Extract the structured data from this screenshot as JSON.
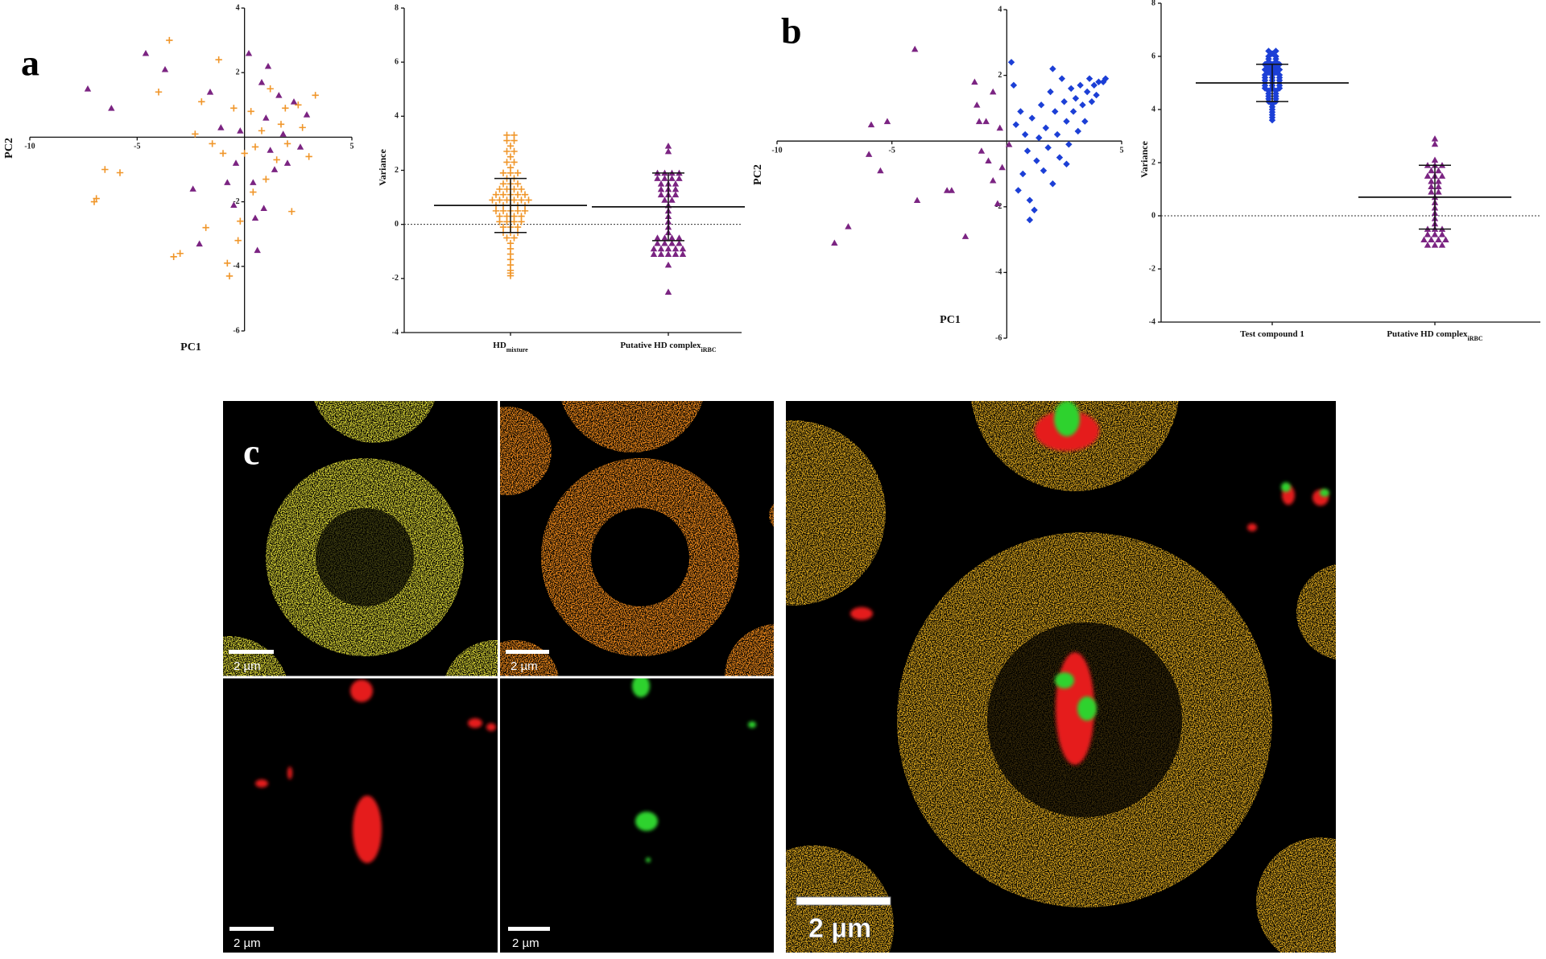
{
  "panel_labels": [
    "a",
    "b",
    "c"
  ],
  "images": {
    "scale_bar_labels": [
      "2 µm",
      "2 µm",
      "2 µm",
      "2 µm",
      "2 µm"
    ]
  },
  "chart_data": [
    {
      "type": "scatter",
      "x_label": "PC1",
      "y_label": "PC2",
      "xlim": [
        -10,
        5
      ],
      "ylim": [
        -6,
        4
      ],
      "xticks": [
        -10,
        -5,
        5
      ],
      "yticks": [
        -6,
        -4,
        -2,
        2,
        4
      ],
      "series": [
        {
          "color": "#f0962a",
          "marker": "plus",
          "x": [
            -7,
            -6.9,
            -6.5,
            -5.8,
            -3.5,
            -4,
            -3.3,
            -3,
            -2.3,
            -2,
            -1.5,
            -1.2,
            -1,
            -0.8,
            -0.7,
            -0.5,
            -0.3,
            -0.2,
            0,
            0.3,
            0.5,
            0.8,
            1,
            1.2,
            1.5,
            1.7,
            2,
            2.2,
            2.5,
            2.7,
            3,
            3.3,
            -1.8,
            0.4,
            1.9
          ],
          "values": [
            -2,
            -1.9,
            -1,
            -1.1,
            3,
            1.4,
            -3.7,
            -3.6,
            0.1,
            1.1,
            -0.2,
            2.4,
            -0.5,
            -3.9,
            -4.3,
            0.9,
            -3.2,
            -2.6,
            -0.5,
            0.8,
            -0.3,
            0.2,
            -1.3,
            1.5,
            -0.7,
            0.4,
            -0.2,
            -2.3,
            1,
            0.3,
            -0.6,
            1.3,
            -2.8,
            -1.7,
            0.9
          ]
        },
        {
          "color": "#7b2482",
          "marker": "triangle",
          "x": [
            -7.3,
            -6.2,
            -4.6,
            -3.7,
            -2.1,
            -2.4,
            -1.6,
            -1.1,
            -0.8,
            -0.4,
            -0.2,
            0.2,
            0.4,
            0.5,
            0.6,
            0.8,
            1,
            1.2,
            1.4,
            1.6,
            1.8,
            2,
            2.3,
            2.6,
            2.9,
            -0.5,
            1.1,
            0.9
          ],
          "values": [
            1.5,
            0.9,
            2.6,
            2.1,
            -3.3,
            -1.6,
            1.4,
            0.3,
            -1.4,
            -0.8,
            0.2,
            2.6,
            -1.4,
            -2.5,
            -3.5,
            1.7,
            0.6,
            -0.4,
            -1,
            1.3,
            0.1,
            -0.8,
            1.1,
            -0.3,
            0.7,
            -2.1,
            2.2,
            -2.2
          ]
        }
      ]
    },
    {
      "type": "dot",
      "y_label": "Variance",
      "ylim": [
        -4,
        8
      ],
      "yticks": [
        -4,
        -2,
        0,
        2,
        4,
        6,
        8
      ],
      "zero_line": true,
      "categories": [
        "HD",
        "Putative HD complex"
      ],
      "category_subscripts": [
        "mixture",
        "iRBC"
      ],
      "colors": [
        "#f0962a",
        "#7b2482"
      ],
      "markers": [
        "plus",
        "triangle"
      ],
      "mean": [
        0.7,
        0.65
      ],
      "sd": [
        1.0,
        1.25
      ],
      "values": [
        [
          3.3,
          3.3,
          3.1,
          3.1,
          2.9,
          2.7,
          2.7,
          2.5,
          2.3,
          2.3,
          2.1,
          1.9,
          1.9,
          1.9,
          1.7,
          1.7,
          1.5,
          1.5,
          1.5,
          1.3,
          1.3,
          1.3,
          1.3,
          1.1,
          1.1,
          1.1,
          1.1,
          1.1,
          0.9,
          0.9,
          0.9,
          0.9,
          0.9,
          0.9,
          0.7,
          0.7,
          0.7,
          0.7,
          0.7,
          0.5,
          0.5,
          0.5,
          0.5,
          0.5,
          0.3,
          0.3,
          0.3,
          0.3,
          0.1,
          0.1,
          0.1,
          0.1,
          -0.1,
          -0.1,
          -0.1,
          -0.3,
          -0.3,
          -0.3,
          -0.5,
          -0.5,
          -0.7,
          -0.9,
          -1.1,
          -1.3,
          -1.5,
          -1.7,
          -1.9,
          -1.8
        ],
        [
          2.9,
          2.7,
          1.9,
          1.9,
          1.9,
          1.9,
          1.7,
          1.7,
          1.7,
          1.7,
          1.5,
          1.5,
          1.5,
          1.3,
          1.3,
          1.3,
          1.1,
          1.1,
          1.1,
          0.9,
          0.9,
          0.7,
          0.5,
          0.3,
          0.1,
          -0.1,
          -0.3,
          -0.5,
          -0.5,
          -0.5,
          -0.5,
          -0.7,
          -0.7,
          -0.7,
          -0.7,
          -0.9,
          -0.9,
          -0.9,
          -0.9,
          -0.9,
          -1.1,
          -1.1,
          -1.1,
          -1.1,
          -1.1,
          -1.5,
          -2.5
        ]
      ]
    },
    {
      "type": "scatter",
      "x_label": "PC1",
      "y_label": "PC2",
      "xlim": [
        -10,
        5
      ],
      "ylim": [
        -6,
        4
      ],
      "xticks": [
        -10,
        -5,
        5
      ],
      "yticks": [
        -6,
        -4,
        -2,
        2,
        4
      ],
      "series": [
        {
          "color": "#7b2482",
          "marker": "triangle",
          "x": [
            -4,
            -5.9,
            -5.2,
            -6,
            -5.5,
            -6.9,
            -7.5,
            -3.9,
            -2.6,
            -2.4,
            -1.8,
            -1.4,
            -1.3,
            -1.2,
            -1.1,
            -0.9,
            -0.8,
            -0.6,
            -0.4,
            -0.2,
            0.1,
            -0.6,
            -0.3
          ],
          "values": [
            2.8,
            0.5,
            0.6,
            -0.4,
            -0.9,
            -2.6,
            -3.1,
            -1.8,
            -1.5,
            -1.5,
            -2.9,
            1.8,
            1.1,
            0.6,
            -0.3,
            0.6,
            -0.6,
            -1.2,
            -1.9,
            -0.8,
            -0.1,
            1.5,
            0.4
          ]
        },
        {
          "color": "#1c3fd6",
          "marker": "diamond",
          "x": [
            0.2,
            0.3,
            0.4,
            0.5,
            0.7,
            0.8,
            0.9,
            1,
            1.2,
            1.1,
            1.3,
            1.4,
            1.5,
            1.6,
            1.7,
            1.8,
            1.9,
            2,
            2.1,
            2.2,
            2.3,
            2.4,
            2.5,
            2.6,
            2.7,
            2.8,
            2.9,
            3,
            3.1,
            3.2,
            3.3,
            3.4,
            3.5,
            3.6,
            3.7,
            3.8,
            3.9,
            4,
            4.2,
            4.3,
            0.6,
            1.0,
            2.0,
            2.6
          ],
          "values": [
            2.4,
            1.7,
            0.5,
            -1.5,
            -1,
            0.2,
            -0.3,
            -2.4,
            -2.1,
            0.7,
            -0.6,
            0.1,
            1.1,
            -0.9,
            0.4,
            -0.2,
            1.5,
            -1.3,
            0.9,
            0.2,
            -0.5,
            1.9,
            1.2,
            0.6,
            -0.1,
            1.6,
            0.9,
            1.3,
            0.3,
            1.7,
            1.1,
            0.6,
            1.5,
            1.9,
            1.2,
            1.7,
            1.4,
            1.8,
            1.8,
            1.9,
            0.9,
            -1.8,
            2.2,
            -0.7
          ]
        }
      ]
    },
    {
      "type": "dot",
      "y_label": "Variance",
      "ylim": [
        -4,
        8
      ],
      "yticks": [
        -4,
        -2,
        0,
        2,
        4,
        6,
        8
      ],
      "zero_line": true,
      "categories": [
        "Test compound 1",
        "Putative HD complex"
      ],
      "category_subscripts": [
        null,
        "iRBC"
      ],
      "colors": [
        "#1c3fd6",
        "#7b2482"
      ],
      "markers": [
        "diamond",
        "triangle"
      ],
      "mean": [
        5.0,
        0.7
      ],
      "sd": [
        0.7,
        1.2
      ],
      "values": [
        [
          6.2,
          6.2,
          6.1,
          6.0,
          6.0,
          5.9,
          5.9,
          5.8,
          5.8,
          5.7,
          5.7,
          5.7,
          5.6,
          5.6,
          5.5,
          5.5,
          5.5,
          5.4,
          5.4,
          5.3,
          5.3,
          5.3,
          5.2,
          5.2,
          5.2,
          5.1,
          5.1,
          5.1,
          5.0,
          5.0,
          5.0,
          4.9,
          4.9,
          4.9,
          4.8,
          4.8,
          4.8,
          4.7,
          4.7,
          4.6,
          4.6,
          4.5,
          4.5,
          4.4,
          4.4,
          4.3,
          4.3,
          4.2,
          4.1,
          4.0,
          3.9,
          3.8,
          3.7,
          3.6
        ],
        [
          2.9,
          2.7,
          2.1,
          1.9,
          1.9,
          1.9,
          1.7,
          1.7,
          1.5,
          1.5,
          1.5,
          1.3,
          1.3,
          1.1,
          1.1,
          0.9,
          0.9,
          0.7,
          0.5,
          0.3,
          0.1,
          -0.1,
          -0.3,
          -0.5,
          -0.5,
          -0.5,
          -0.7,
          -0.7,
          -0.7,
          -0.9,
          -0.9,
          -0.9,
          -0.9,
          -1.1,
          -1.1,
          -1.1
        ]
      ]
    }
  ]
}
